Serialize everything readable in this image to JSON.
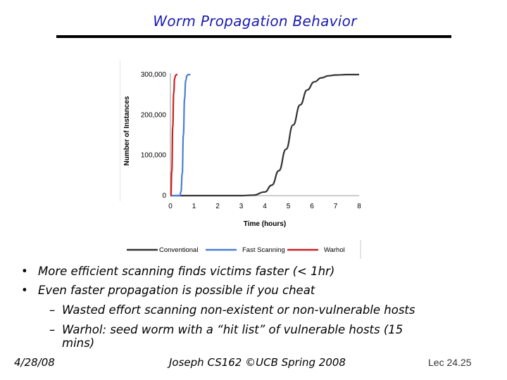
{
  "slide": {
    "title": "Worm Propagation Behavior",
    "bullets": [
      {
        "level": 1,
        "marker": "•",
        "text": "More efficient scanning finds victims faster (< 1hr)"
      },
      {
        "level": 1,
        "marker": "•",
        "text": "Even faster propagation is possible if you cheat"
      },
      {
        "level": 2,
        "marker": "–",
        "text": "Wasted effort scanning non-existent or non-vulnerable hosts"
      },
      {
        "level": 2,
        "marker": "–",
        "text": "Warhol: seed worm with a “hit list” of vulnerable hosts (15",
        "continuation": "mins)"
      }
    ]
  },
  "footer": {
    "date": "4/28/08",
    "center": "Joseph CS162 ©UCB Spring 2008",
    "lecture": "Lec 24.25"
  },
  "chart_data": {
    "type": "line",
    "title": "",
    "xlabel": "Time (hours)",
    "ylabel": "Number of Instances",
    "xlim": [
      0,
      8
    ],
    "ylim": [
      0,
      300000
    ],
    "x_ticks": [
      "0",
      "1",
      "2",
      "3",
      "4",
      "5",
      "6",
      "7",
      "8"
    ],
    "y_ticks": [
      "0",
      "100,000",
      "200,000",
      "300,000"
    ],
    "y_tick_values": [
      0,
      100000,
      200000,
      300000
    ],
    "legend_position": "bottom",
    "series": [
      {
        "name": "Conventional",
        "color": "#333333",
        "x": [
          0,
          3,
          3.5,
          4,
          4.3,
          4.6,
          4.9,
          5.2,
          5.5,
          5.8,
          6.1,
          6.4,
          6.7,
          7,
          7.5,
          8
        ],
        "y": [
          0,
          0,
          1000,
          9000,
          26000,
          62000,
          115000,
          175000,
          225000,
          262000,
          282000,
          292000,
          297000,
          299000,
          300000,
          300000
        ]
      },
      {
        "name": "Fast Scanning",
        "color": "#4a7fd6",
        "x": [
          0,
          0.4,
          0.45,
          0.5,
          0.55,
          0.6,
          0.65,
          0.7,
          0.75,
          0.85
        ],
        "y": [
          0,
          0,
          10000,
          55000,
          150000,
          240000,
          285000,
          297000,
          300000,
          300000
        ]
      },
      {
        "name": "Warhol",
        "color": "#cc2222",
        "x": [
          0,
          0.02,
          0.06,
          0.1,
          0.14,
          0.18,
          0.22,
          0.26,
          0.3
        ],
        "y": [
          0,
          0,
          60000,
          170000,
          255000,
          290000,
          298000,
          300000,
          300000
        ]
      }
    ]
  }
}
